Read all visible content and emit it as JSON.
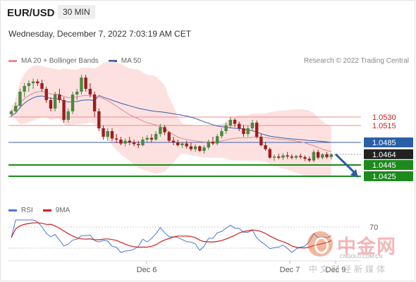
{
  "header": {
    "symbol": "EUR/USD",
    "timeframe": "30 MIN"
  },
  "timestamp": "Wednesday, December 7, 2022 7:03:19 AM CET",
  "credit": "Research © 2022 Trading Central",
  "legend": {
    "ma20": "MA 20 + Bollinger Bands",
    "ma50": "MA 50",
    "rsi": "RSI",
    "rsi_ma": "9MA"
  },
  "colors": {
    "bull": "#4a8a3e",
    "bear": "#9c1d1d",
    "ma20": "#e08a8a",
    "band_fill": "#fcd9d9",
    "ma50": "#3a5ea8",
    "support": "#1a8a1a",
    "resistance": "#f08a8a",
    "rsi": "#4a78d4",
    "rsi_ma": "#cc1f1f",
    "arrow": "#2a5fa8",
    "badge_last": "#222222",
    "badge_blue": "#2a5fa8",
    "badge_green": "#1e8a1e"
  },
  "watermark": {
    "brand": "中金网",
    "url": "CNGOLD.COM.CN",
    "tagline": "中文财经新媒体"
  },
  "chart_data": {
    "type": "candlestick",
    "ylim": [
      1.0385,
      1.0615
    ],
    "x_ticks": [
      "Dec 6",
      "Dec 7",
      "Dec 9"
    ],
    "levels": [
      {
        "label": "1.0530",
        "value": 1.053,
        "kind": "resistance"
      },
      {
        "label": "1.0515",
        "value": 1.0515,
        "kind": "resistance"
      },
      {
        "label": "1.0485",
        "value": 1.0485,
        "kind": "ma50"
      },
      {
        "label": "1.0464",
        "value": 1.0464,
        "kind": "last"
      },
      {
        "label": "1.0445",
        "value": 1.0445,
        "kind": "support"
      },
      {
        "label": "1.0425",
        "value": 1.0425,
        "kind": "support"
      }
    ],
    "ohlc": [
      [
        1.0535,
        1.0543,
        1.053,
        1.054
      ],
      [
        1.054,
        1.0556,
        1.0538,
        1.055
      ],
      [
        1.055,
        1.058,
        1.0545,
        1.0575
      ],
      [
        1.0575,
        1.059,
        1.0565,
        1.0585
      ],
      [
        1.0585,
        1.0595,
        1.0575,
        1.059
      ],
      [
        1.059,
        1.0598,
        1.058,
        1.0593
      ],
      [
        1.0593,
        1.0597,
        1.0585,
        1.059
      ],
      [
        1.059,
        1.0596,
        1.0575,
        1.058
      ],
      [
        1.058,
        1.0584,
        1.0555,
        1.056
      ],
      [
        1.056,
        1.0565,
        1.054,
        1.0545
      ],
      [
        1.0545,
        1.0575,
        1.054,
        1.057
      ],
      [
        1.057,
        1.058,
        1.0555,
        1.056
      ],
      [
        1.056,
        1.0565,
        1.052,
        1.0525
      ],
      [
        1.0525,
        1.0545,
        1.052,
        1.054
      ],
      [
        1.054,
        1.0575,
        1.0535,
        1.057
      ],
      [
        1.057,
        1.058,
        1.056,
        1.0575
      ],
      [
        1.0575,
        1.0605,
        1.057,
        1.06
      ],
      [
        1.06,
        1.0605,
        1.0575,
        1.058
      ],
      [
        1.058,
        1.059,
        1.0565,
        1.057
      ],
      [
        1.057,
        1.0575,
        1.053,
        1.054
      ],
      [
        1.054,
        1.0545,
        1.0505,
        1.051
      ],
      [
        1.051,
        1.0515,
        1.049,
        1.0495
      ],
      [
        1.0495,
        1.051,
        1.0488,
        1.0505
      ],
      [
        1.0505,
        1.051,
        1.0488,
        1.0492
      ],
      [
        1.0492,
        1.05,
        1.0484,
        1.049
      ],
      [
        1.049,
        1.0495,
        1.048,
        1.0483
      ],
      [
        1.0483,
        1.0492,
        1.0478,
        1.0488
      ],
      [
        1.0488,
        1.0495,
        1.048,
        1.0485
      ],
      [
        1.0485,
        1.049,
        1.0478,
        1.0482
      ],
      [
        1.0482,
        1.0488,
        1.0475,
        1.048
      ],
      [
        1.048,
        1.0495,
        1.0478,
        1.049
      ],
      [
        1.049,
        1.0498,
        1.0485,
        1.0493
      ],
      [
        1.0493,
        1.05,
        1.0485,
        1.049
      ],
      [
        1.049,
        1.0505,
        1.0488,
        1.05
      ],
      [
        1.05,
        1.0518,
        1.0495,
        1.0512
      ],
      [
        1.0512,
        1.0516,
        1.0498,
        1.0503
      ],
      [
        1.0503,
        1.0505,
        1.0485,
        1.0488
      ],
      [
        1.0488,
        1.0495,
        1.048,
        1.0485
      ],
      [
        1.0485,
        1.049,
        1.0478,
        1.048
      ],
      [
        1.048,
        1.0486,
        1.0475,
        1.0483
      ],
      [
        1.0483,
        1.0488,
        1.0474,
        1.0478
      ],
      [
        1.0478,
        1.0485,
        1.047,
        1.0473
      ],
      [
        1.0473,
        1.0482,
        1.0468,
        1.0478
      ],
      [
        1.0478,
        1.048,
        1.0468,
        1.047
      ],
      [
        1.047,
        1.048,
        1.0465,
        1.0476
      ],
      [
        1.0476,
        1.049,
        1.0472,
        1.0486
      ],
      [
        1.0486,
        1.0495,
        1.048,
        1.0483
      ],
      [
        1.0483,
        1.05,
        1.048,
        1.0496
      ],
      [
        1.0496,
        1.051,
        1.0492,
        1.0505
      ],
      [
        1.0505,
        1.052,
        1.05,
        1.0515
      ],
      [
        1.0515,
        1.053,
        1.051,
        1.0525
      ],
      [
        1.0525,
        1.0528,
        1.0512,
        1.0518
      ],
      [
        1.0518,
        1.0522,
        1.0505,
        1.051
      ],
      [
        1.051,
        1.0516,
        1.0495,
        1.05
      ],
      [
        1.05,
        1.0515,
        1.0495,
        1.051
      ],
      [
        1.051,
        1.0525,
        1.0505,
        1.052
      ],
      [
        1.052,
        1.0524,
        1.0492,
        1.0495
      ],
      [
        1.0495,
        1.05,
        1.0478,
        1.048
      ],
      [
        1.048,
        1.0486,
        1.047,
        1.0473
      ],
      [
        1.0473,
        1.0476,
        1.0456,
        1.0458
      ],
      [
        1.0458,
        1.0464,
        1.0452,
        1.046
      ],
      [
        1.046,
        1.0465,
        1.0455,
        1.0458
      ],
      [
        1.0458,
        1.0466,
        1.0454,
        1.0462
      ],
      [
        1.0462,
        1.0468,
        1.0456,
        1.046
      ],
      [
        1.046,
        1.0464,
        1.0455,
        1.0458
      ],
      [
        1.0458,
        1.0463,
        1.0455,
        1.0461
      ],
      [
        1.0461,
        1.0465,
        1.0456,
        1.0459
      ],
      [
        1.0459,
        1.0462,
        1.0452,
        1.0456
      ],
      [
        1.0456,
        1.046,
        1.045,
        1.0453
      ],
      [
        1.0453,
        1.0472,
        1.045,
        1.0468
      ],
      [
        1.0468,
        1.0472,
        1.0455,
        1.0458
      ],
      [
        1.0458,
        1.0466,
        1.0455,
        1.0464
      ],
      [
        1.0464,
        1.0468,
        1.0456,
        1.0459
      ],
      [
        1.0459,
        1.0466,
        1.0455,
        1.0464
      ]
    ],
    "rsi_levels": [
      "70"
    ]
  }
}
